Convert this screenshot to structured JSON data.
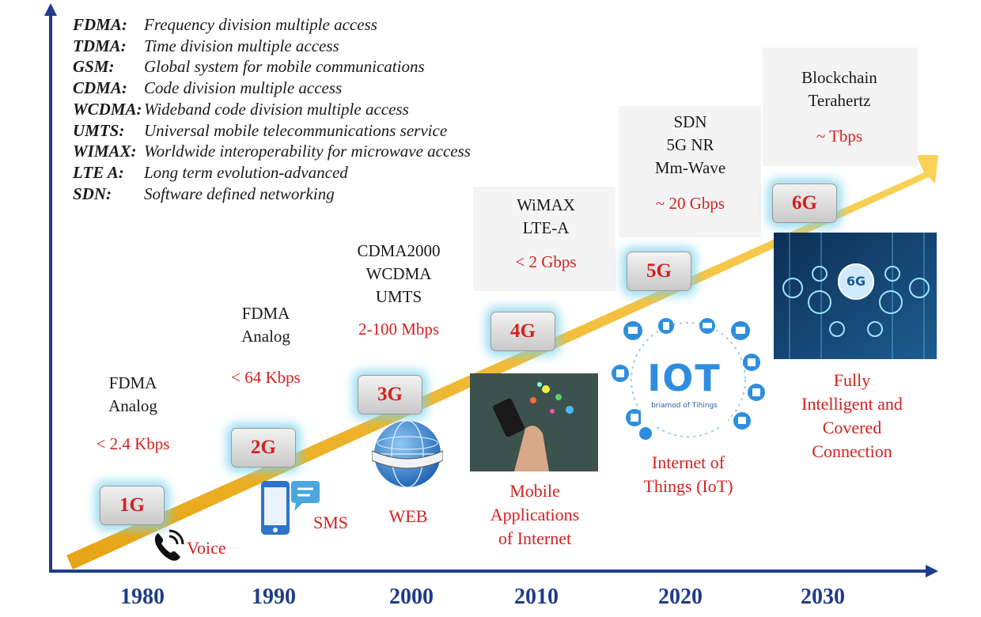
{
  "legend": [
    {
      "abbr": "FDMA:",
      "definition": "Frequency division multiple access"
    },
    {
      "abbr": "TDMA:",
      "definition": "Time division multiple access"
    },
    {
      "abbr": "GSM:",
      "definition": "Global system for mobile communications"
    },
    {
      "abbr": "CDMA:",
      "definition": "Code division multiple access"
    },
    {
      "abbr": "WCDMA:",
      "definition": "Wideband code division multiple access"
    },
    {
      "abbr": "UMTS:",
      "definition": "Universal mobile telecommunications service"
    },
    {
      "abbr": "WIMAX:",
      "definition": "Worldwide interoperability for microwave access"
    },
    {
      "abbr": "LTE A:",
      "definition": "Long term evolution-advanced"
    },
    {
      "abbr": "SDN:",
      "definition": "Software defined networking"
    }
  ],
  "generations": [
    {
      "label": "1G",
      "year": "1980",
      "tech": [
        "FDMA",
        "Analog"
      ],
      "rate": "< 2.4 Kbps",
      "application": [
        "Voice"
      ],
      "icon": "phone-icon"
    },
    {
      "label": "2G",
      "year": "1990",
      "tech": [
        "FDMA",
        "Analog"
      ],
      "rate": "< 64 Kbps",
      "application": [
        "SMS"
      ],
      "icon": "sms-phone-icon"
    },
    {
      "label": "3G",
      "year": "2000",
      "tech": [
        "CDMA2000",
        "WCDMA",
        "UMTS"
      ],
      "rate": "2-100 Mbps",
      "application": [
        "WEB"
      ],
      "icon": "globe-icon"
    },
    {
      "label": "4G",
      "year": "2010",
      "tech": [
        "WiMAX",
        "LTE-A"
      ],
      "rate": "< 2 Gbps",
      "application": [
        "Mobile",
        "Applications",
        "of Internet"
      ],
      "icon": "hand-phone-image"
    },
    {
      "label": "5G",
      "year": "2020",
      "tech": [
        "SDN",
        "5G NR",
        "Mm-Wave"
      ],
      "rate": "~ 20 Gbps",
      "application": [
        "Internet of",
        "Things (IoT)"
      ],
      "icon": "iot-icon"
    },
    {
      "label": "6G",
      "year": "2030",
      "tech": [
        "Blockchain",
        "Terahertz"
      ],
      "rate": "~ Tbps",
      "application": [
        "Fully",
        "Intelligent and",
        "Covered",
        "Connection"
      ],
      "icon": "6g-network-image"
    }
  ],
  "iot_logo": {
    "title": "IOT",
    "subtitle": "briamod of Tihings"
  },
  "sixg_badge": "6G",
  "colors": {
    "arrow": "#f2b41c",
    "axis": "#1f3c8a",
    "accent_red": "#d42020",
    "glow": "#7fd6ee"
  }
}
